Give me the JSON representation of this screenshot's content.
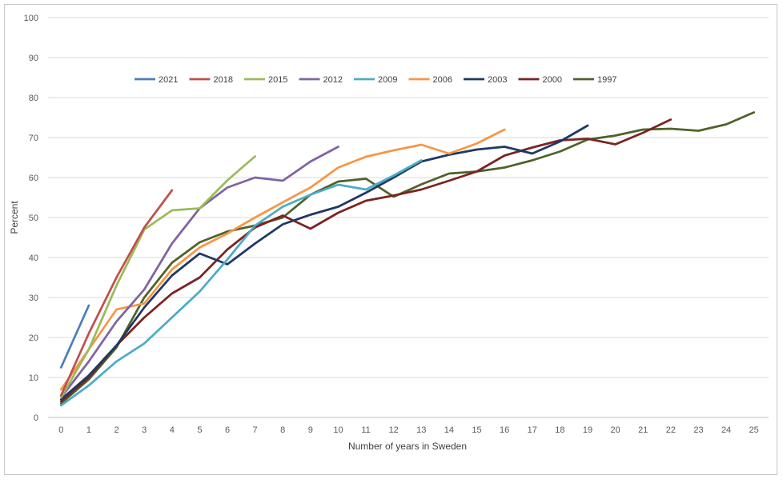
{
  "chart_data": {
    "type": "line",
    "title": "",
    "xlabel": "Number of years in Sweden",
    "ylabel": "Percent",
    "ylim": [
      0,
      100
    ],
    "yticks": [
      0,
      10,
      20,
      30,
      40,
      50,
      60,
      70,
      80,
      90,
      100
    ],
    "xlim": [
      0,
      25
    ],
    "xticks": [
      0,
      1,
      2,
      3,
      4,
      5,
      6,
      7,
      8,
      9,
      10,
      11,
      12,
      13,
      14,
      15,
      16,
      17,
      18,
      19,
      20,
      21,
      22,
      23,
      24,
      25
    ],
    "grid": "horizontal",
    "legend_position": "top",
    "series": [
      {
        "name": "2021",
        "color": "#4a7ebb",
        "values": [
          12.5,
          28
        ]
      },
      {
        "name": "2018",
        "color": "#c0504d",
        "values": [
          5.5,
          21,
          35,
          47.5,
          56.8
        ]
      },
      {
        "name": "2015",
        "color": "#9bbb59",
        "values": [
          5,
          17,
          33,
          47,
          51.8,
          52.3,
          59.3,
          65.3
        ]
      },
      {
        "name": "2012",
        "color": "#8064a2",
        "values": [
          5,
          14,
          24,
          32,
          43.5,
          52.3,
          57.5,
          60,
          59.2,
          64,
          67.7
        ]
      },
      {
        "name": "2009",
        "color": "#4bacc6",
        "values": [
          3,
          8,
          14,
          18.5,
          25,
          31.5,
          39.5,
          48,
          52.7,
          55.7,
          58.2,
          57,
          60.5,
          64.3
        ]
      },
      {
        "name": "2006",
        "color": "#f79646",
        "values": [
          7,
          17,
          27,
          28.5,
          37,
          42.5,
          46,
          50,
          53.8,
          57.5,
          62.5,
          65.2,
          66.8,
          68.2,
          66,
          68.5,
          72
        ]
      },
      {
        "name": "2003",
        "color": "#1f3864",
        "values": [
          4.5,
          10.5,
          18,
          27.5,
          35.5,
          41,
          38.3,
          43.5,
          48.3,
          50.7,
          52.7,
          56.2,
          60,
          64,
          65.7,
          67,
          67.7,
          66,
          69,
          73
        ]
      },
      {
        "name": "2000",
        "color": "#7b2323",
        "values": [
          4,
          10,
          18,
          25,
          31,
          35,
          42,
          47.5,
          50.5,
          47.2,
          51.2,
          54.2,
          55.5,
          57,
          59.2,
          61.5,
          65.5,
          67.5,
          69.3,
          69.7,
          68.3,
          71.2,
          74.5
        ]
      },
      {
        "name": "1997",
        "color": "#4f6228",
        "values": [
          3.5,
          9.5,
          17.5,
          30,
          38.7,
          43.8,
          46.5,
          48,
          50,
          55.7,
          59,
          59.7,
          55.2,
          58.3,
          61,
          61.5,
          62.5,
          64.3,
          66.5,
          69.5,
          70.5,
          72,
          72.2,
          71.7,
          73.3,
          76.3
        ]
      }
    ]
  }
}
